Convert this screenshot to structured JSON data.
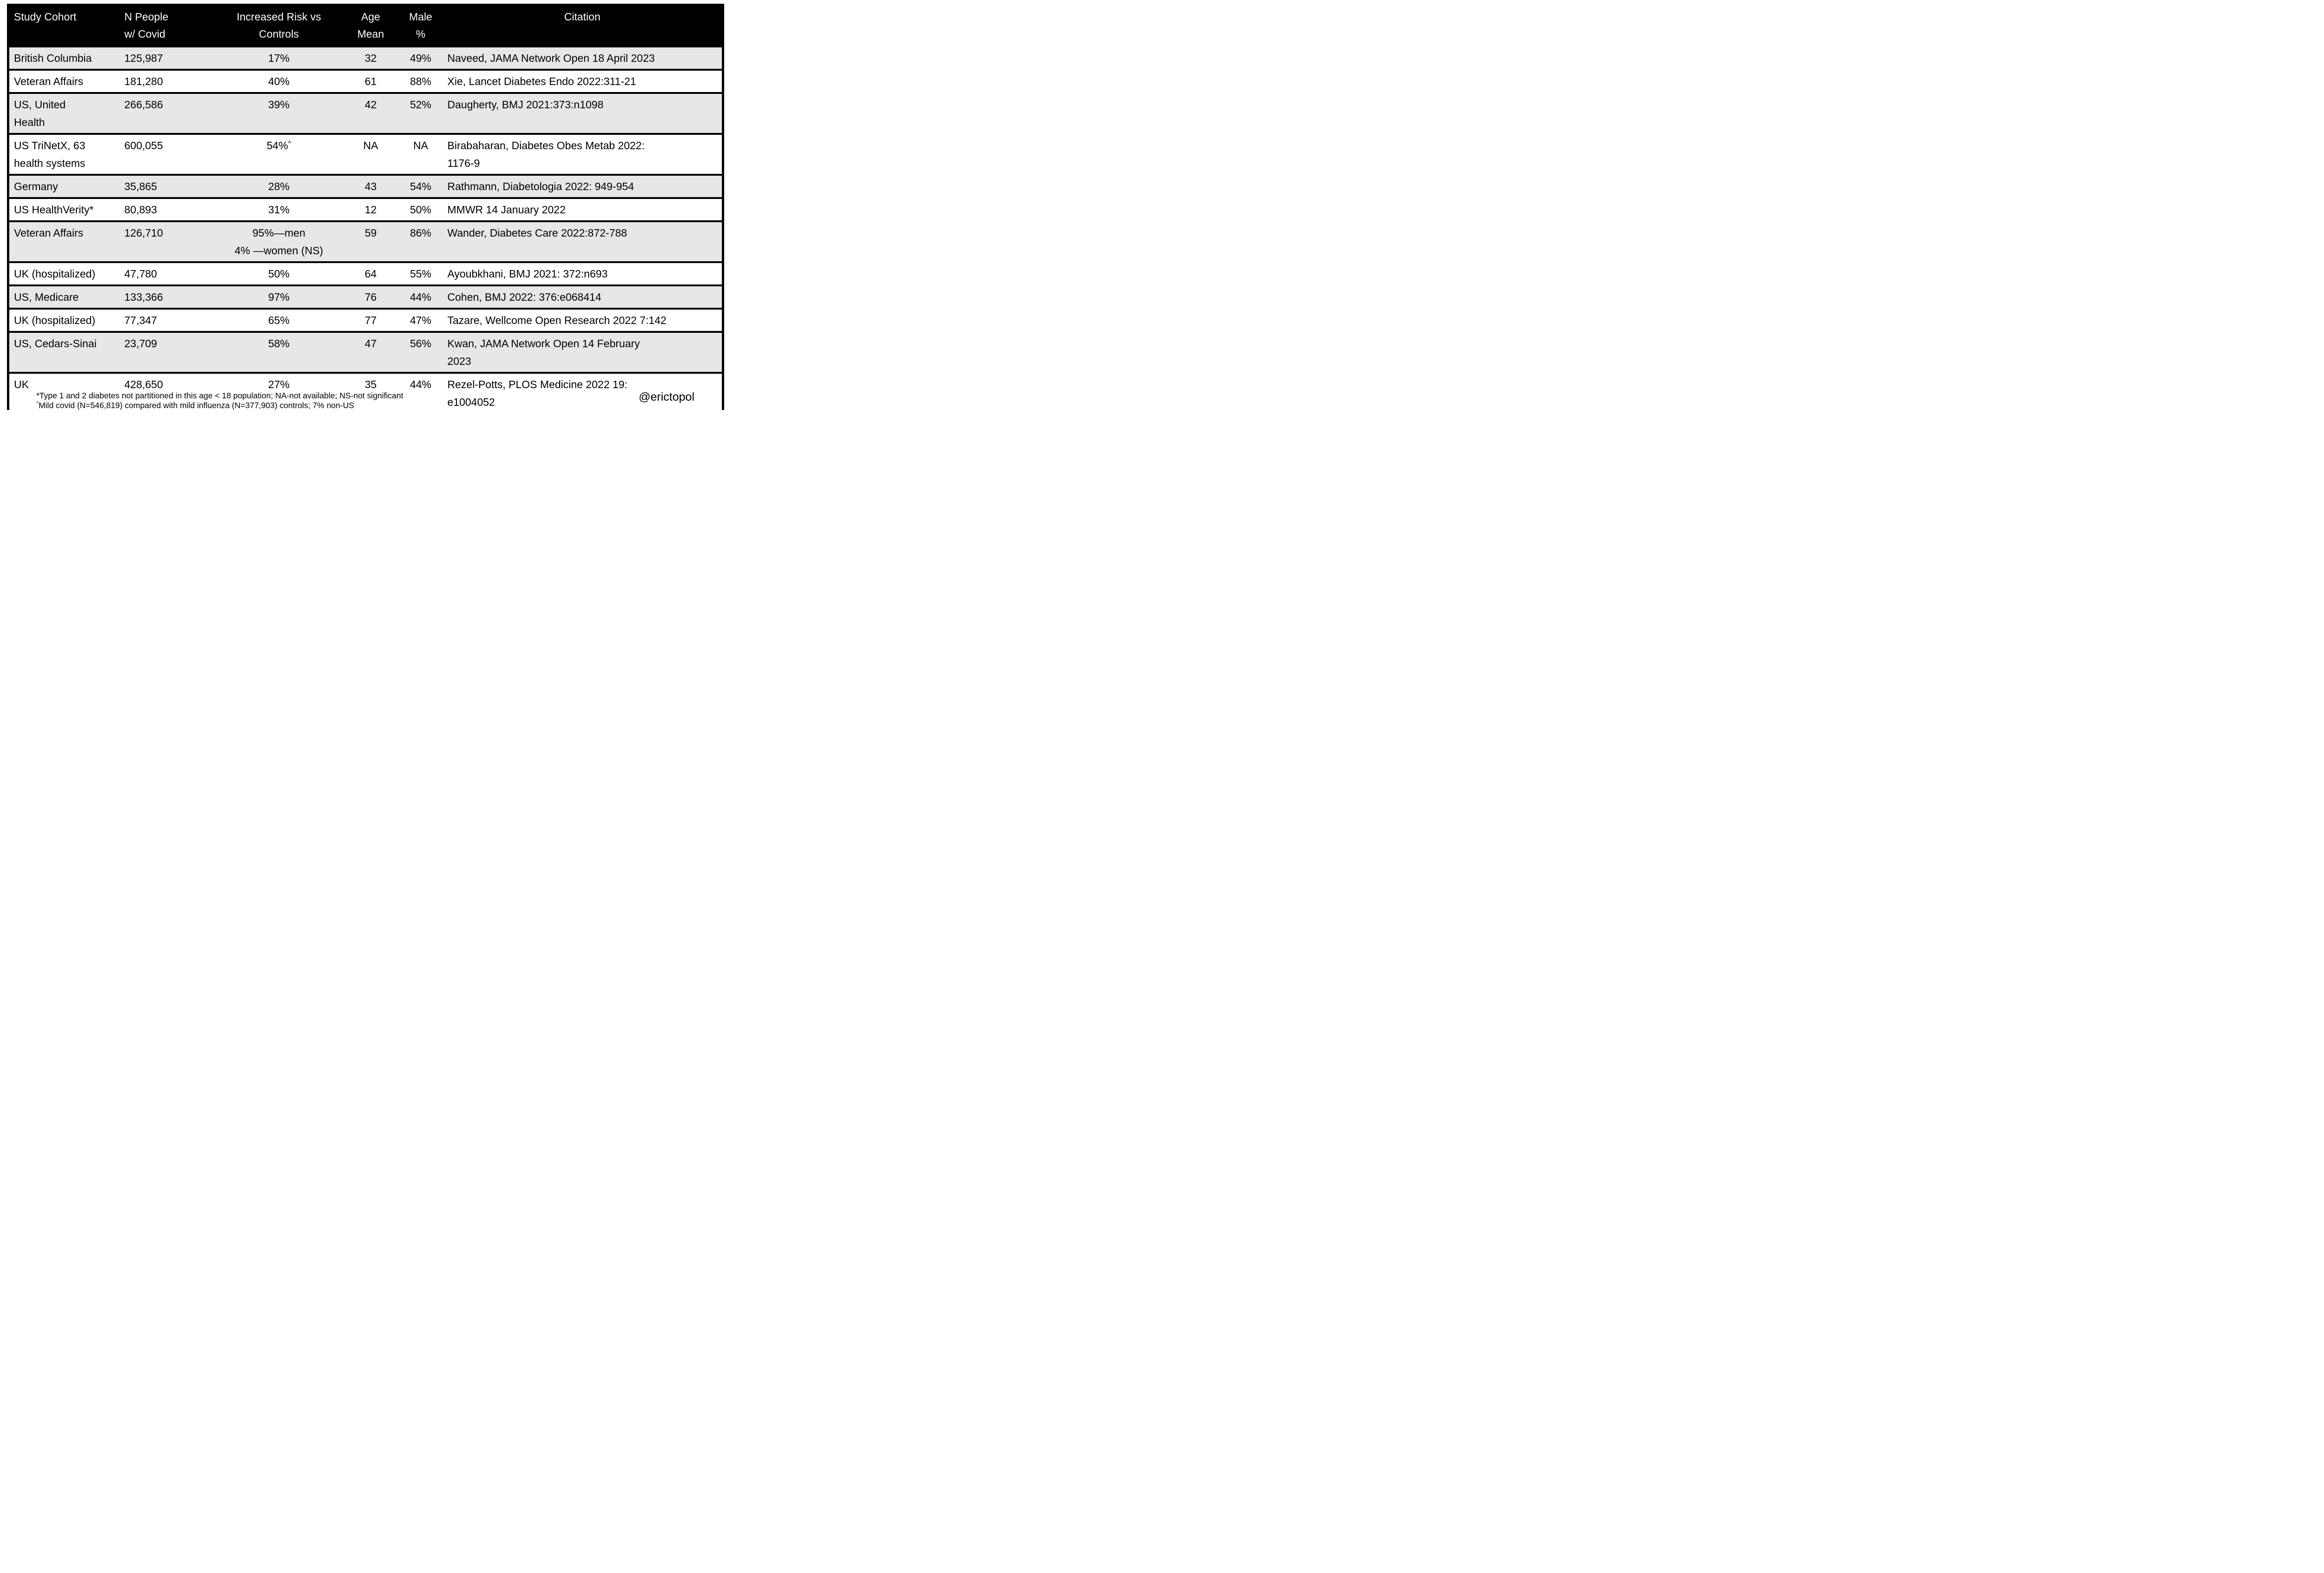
{
  "colors": {
    "header_bg": "#000000",
    "header_text": "#ffffff",
    "row_shade": "#e7e7e7",
    "border": "#000000",
    "background": "#ffffff"
  },
  "chart_data": {
    "type": "table",
    "title": "",
    "legend": "none",
    "grid": "horizontal black row separators, alternating gray/white row shading, black header band",
    "columns": [
      {
        "key": "cohort",
        "line1": "Study Cohort",
        "line2": "",
        "align": "left"
      },
      {
        "key": "n",
        "line1": "N  People",
        "line2": "w/ Covid",
        "align": "left"
      },
      {
        "key": "risk",
        "line1": "Increased Risk vs",
        "line2": "Controls",
        "align": "center"
      },
      {
        "key": "age",
        "line1": "Age",
        "line2": "Mean",
        "align": "center"
      },
      {
        "key": "male",
        "line1": "Male",
        "line2": "%",
        "align": "center"
      },
      {
        "key": "citation",
        "line1": "Citation",
        "line2": "",
        "align": "left"
      }
    ],
    "rows": [
      {
        "cohort": "British Columbia",
        "n": "125,987",
        "risk": "17%",
        "age": "32",
        "male": "49%",
        "citation": "Naveed, JAMA Network Open 18 April 2023"
      },
      {
        "cohort": "Veteran Affairs",
        "n": "181,280",
        "risk": "40%",
        "age": "61",
        "male": "88%",
        "citation": "Xie, Lancet Diabetes Endo 2022:311-21"
      },
      {
        "cohort": "US, United\nHealth",
        "n": "266,586",
        "risk": "39%",
        "age": "42",
        "male": "52%",
        "citation": "Daugherty, BMJ 2021:373:n1098"
      },
      {
        "cohort": "US TriNetX, 63\nhealth systems",
        "n": "600,055",
        "risk": "54%^",
        "age": "NA",
        "male": "NA",
        "citation": "Birabaharan, Diabetes Obes Metab 2022:\n1176-9"
      },
      {
        "cohort": "Germany",
        "n": "35,865",
        "risk": "28%",
        "age": "43",
        "male": "54%",
        "citation": "Rathmann, Diabetologia 2022: 949-954"
      },
      {
        "cohort": "US HealthVerity*",
        "n": "80,893",
        "risk": "31%",
        "age": "12",
        "male": "50%",
        "citation": "MMWR 14 January 2022"
      },
      {
        "cohort": "Veteran Affairs",
        "n": "126,710",
        "risk": "95%—men\n4% —women (NS)",
        "age": "59",
        "male": "86%",
        "citation": "Wander, Diabetes Care 2022:872-788"
      },
      {
        "cohort": "UK (hospitalized)",
        "n": "47,780",
        "risk": "50%",
        "age": "64",
        "male": "55%",
        "citation": "Ayoubkhani, BMJ 2021: 372:n693"
      },
      {
        "cohort": "US, Medicare",
        "n": "133,366",
        "risk": "97%",
        "age": "76",
        "male": "44%",
        "citation": "Cohen, BMJ 2022: 376:e068414"
      },
      {
        "cohort": "UK (hospitalized)",
        "n": "77,347",
        "risk": "65%",
        "age": "77",
        "male": "47%",
        "citation": "Tazare, Wellcome Open Research 2022 7:142"
      },
      {
        "cohort": "US, Cedars-Sinai",
        "n": "23,709",
        "risk": "58%",
        "age": "47",
        "male": "56%",
        "citation": "Kwan, JAMA Network Open 14 February\n2023"
      },
      {
        "cohort": "UK",
        "n": "428,650",
        "risk": "27%",
        "age": "35",
        "male": "44%",
        "citation": "Rezel-Potts, PLOS Medicine 2022 19:\ne1004052"
      }
    ]
  },
  "footnotes": {
    "line1": "*Type 1 and 2 diabetes not partitioned in this age < 18 population; NA-not available; NS-not significant",
    "line2": "^Mild covid (N=546,819) compared with mild influenza (N=377,903) controls; 7% non-US"
  },
  "credit": "@erictopol"
}
